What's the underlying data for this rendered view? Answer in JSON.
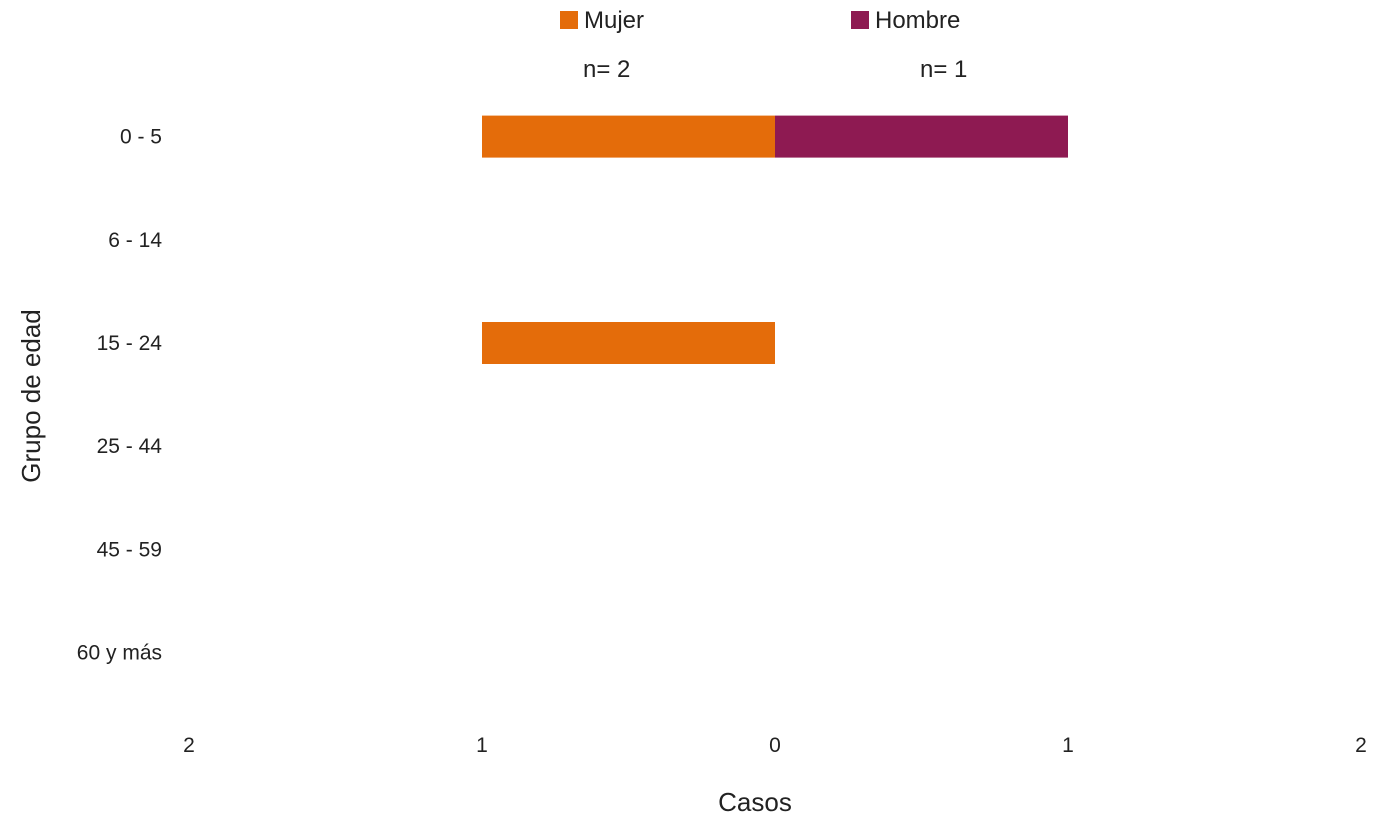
{
  "chart_data": {
    "type": "bar",
    "orientation": "horizontal-diverging",
    "categories": [
      "0 - 5",
      "6 - 14",
      "15 - 24",
      "25 - 44",
      "45 - 59",
      "60 y más"
    ],
    "series": [
      {
        "name": "Mujer",
        "n_label": "n= 2",
        "values": [
          1,
          0,
          1,
          0,
          0,
          0
        ],
        "color": "#E46C0A",
        "side": "left"
      },
      {
        "name": "Hombre",
        "n_label": "n= 1",
        "values": [
          1,
          0,
          0,
          0,
          0,
          0
        ],
        "color": "#8E1A52",
        "side": "right"
      }
    ],
    "x_ticks": [
      {
        "value": -2,
        "label": "2"
      },
      {
        "value": -1,
        "label": "1"
      },
      {
        "value": 0,
        "label": "0"
      },
      {
        "value": 1,
        "label": "1"
      },
      {
        "value": 2,
        "label": "2"
      }
    ],
    "xlim": [
      -2,
      2
    ],
    "xlabel": "Casos",
    "ylabel": "Grupo de edad",
    "grid": false,
    "legend_position": "top"
  }
}
